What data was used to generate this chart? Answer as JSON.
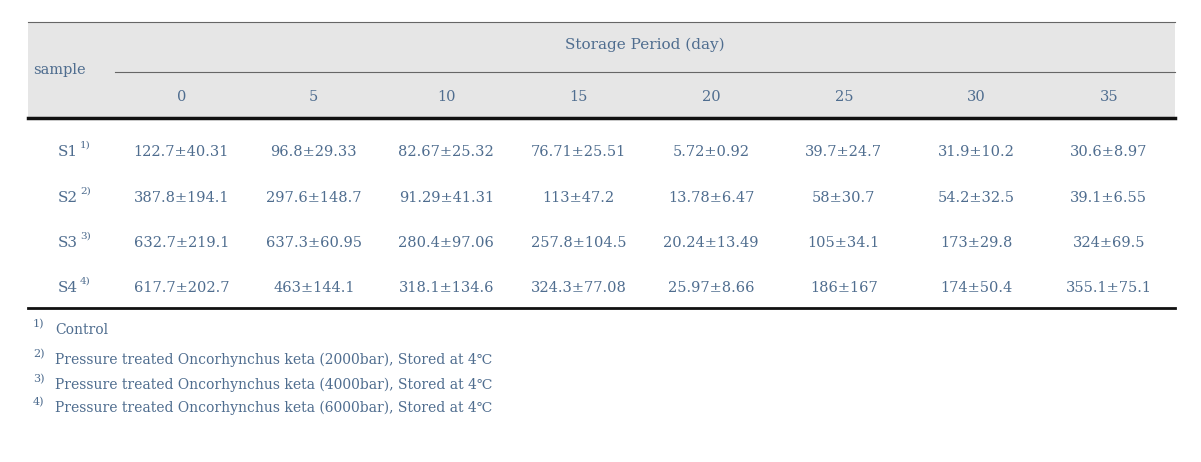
{
  "title": "Storage Period (day)",
  "col_headers": [
    "0",
    "5",
    "10",
    "15",
    "20",
    "25",
    "30",
    "35"
  ],
  "row_labels": [
    "S1",
    "S2",
    "S3",
    "S4"
  ],
  "row_superscripts": [
    "1)",
    "2)",
    "3)",
    "4)"
  ],
  "table_data": [
    [
      "122.7±40.31",
      "96.8±29.33",
      "82.67±25.32",
      "76.71±25.51",
      "5.72±0.92",
      "39.7±24.7",
      "31.9±10.2",
      "30.6±8.97"
    ],
    [
      "387.8±194.1",
      "297.6±148.7",
      "91.29±41.31",
      "113±47.2",
      "13.78±6.47",
      "58±30.7",
      "54.2±32.5",
      "39.1±6.55"
    ],
    [
      "632.7±219.1",
      "637.3±60.95",
      "280.4±97.06",
      "257.8±104.5",
      "20.24±13.49",
      "105±34.1",
      "173±29.8",
      "324±69.5"
    ],
    [
      "617.7±202.7",
      "463±144.1",
      "318.1±134.6",
      "324.3±77.08",
      "25.97±8.66",
      "186±167",
      "174±50.4",
      "355.1±75.1"
    ]
  ],
  "footnote_sups": [
    "1)",
    "2)",
    "3)",
    "4)"
  ],
  "footnote_texts": [
    "Control",
    "Pressure treated Oncorhynchus keta (2000bar), Stored at 4℃",
    "Pressure treated Oncorhynchus keta (4000bar), Stored at 4℃",
    "Pressure treated Oncorhynchus keta (6000bar), Stored at 4℃"
  ],
  "bg_color_header": "#e6e6e6",
  "bg_color_body": "#ffffff",
  "text_color_data": "#4f6d8f",
  "text_color_header": "#4f6d8f",
  "text_color_footnote": "#4f6d8f",
  "sample_label": "sample",
  "thick_line_color": "#111111",
  "thin_line_color": "#666666",
  "figwidth": 12.01,
  "figheight": 4.62,
  "dpi": 100
}
